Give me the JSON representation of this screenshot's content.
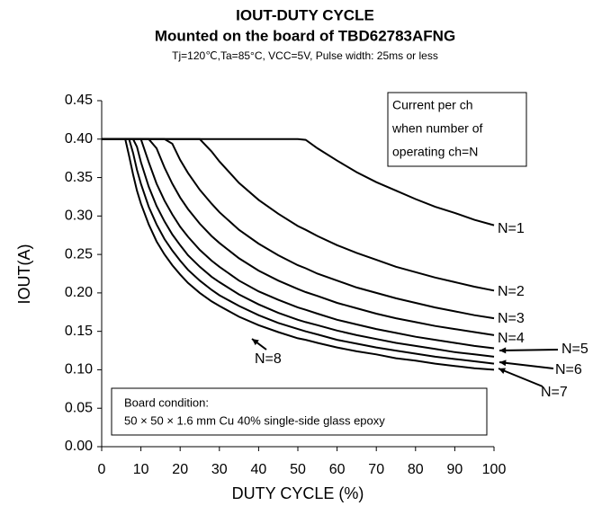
{
  "chart_data": {
    "type": "line",
    "title": "IOUT-DUTY CYCLE",
    "subtitle": "Mounted on the board of TBD62783AFNG",
    "conditions": "Tj=120℃,Ta=85°C, VCC=5V, Pulse width: 25ms or less",
    "x_label": "DUTY CYCLE (%)",
    "y_label": "IOUT(A)",
    "legend_note": [
      "Current per ch",
      "when number of",
      "operating ch=N"
    ],
    "board_note": [
      "Board condition:",
      "50 × 50 × 1.6 mm Cu 40% single-side glass epoxy"
    ],
    "xlim": [
      0,
      100
    ],
    "ylim": [
      0,
      0.45
    ],
    "xticks": [
      0,
      10,
      20,
      30,
      40,
      50,
      60,
      70,
      80,
      90,
      100
    ],
    "yticks": [
      {
        "value": 0,
        "label": "0.00"
      },
      {
        "value": 0.05,
        "label": "0.05"
      },
      {
        "value": 0.1,
        "label": "0.10"
      },
      {
        "value": 0.15,
        "label": "0.15"
      },
      {
        "value": 0.2,
        "label": "0.20"
      },
      {
        "value": 0.25,
        "label": "0.25"
      },
      {
        "value": 0.3,
        "label": "0.30"
      },
      {
        "value": 0.35,
        "label": "0.35"
      },
      {
        "value": 0.4,
        "label": "0.40"
      },
      {
        "value": 0.45,
        "label": "0.45"
      }
    ],
    "grid": false,
    "x": [
      0,
      5,
      6,
      7,
      8,
      9,
      10,
      12,
      14,
      16,
      18,
      20,
      22,
      25,
      28,
      30,
      35,
      40,
      45,
      50,
      52,
      55,
      60,
      65,
      70,
      75,
      80,
      85,
      90,
      95,
      100
    ],
    "series": [
      {
        "name": "N=1",
        "color": "#000000",
        "values": [
          0.4,
          0.4,
          0.4,
          0.4,
          0.4,
          0.4,
          0.4,
          0.4,
          0.4,
          0.4,
          0.4,
          0.4,
          0.4,
          0.4,
          0.4,
          0.4,
          0.4,
          0.4,
          0.4,
          0.4,
          0.399,
          0.388,
          0.372,
          0.357,
          0.344,
          0.333,
          0.322,
          0.312,
          0.304,
          0.295,
          0.288
        ]
      },
      {
        "name": "N=2",
        "color": "#000000",
        "values": [
          0.4,
          0.4,
          0.4,
          0.4,
          0.4,
          0.4,
          0.4,
          0.4,
          0.4,
          0.4,
          0.4,
          0.4,
          0.4,
          0.4,
          0.384,
          0.371,
          0.343,
          0.321,
          0.303,
          0.287,
          0.282,
          0.274,
          0.262,
          0.252,
          0.243,
          0.234,
          0.227,
          0.22,
          0.214,
          0.208,
          0.203
        ]
      },
      {
        "name": "N=3",
        "color": "#000000",
        "values": [
          0.4,
          0.4,
          0.4,
          0.4,
          0.4,
          0.4,
          0.4,
          0.4,
          0.4,
          0.4,
          0.394,
          0.373,
          0.356,
          0.334,
          0.316,
          0.305,
          0.282,
          0.264,
          0.249,
          0.236,
          0.232,
          0.225,
          0.216,
          0.207,
          0.2,
          0.193,
          0.187,
          0.181,
          0.176,
          0.171,
          0.167
        ]
      },
      {
        "name": "N=4",
        "color": "#000000",
        "values": [
          0.4,
          0.4,
          0.4,
          0.4,
          0.4,
          0.4,
          0.4,
          0.4,
          0.388,
          0.363,
          0.342,
          0.324,
          0.309,
          0.29,
          0.274,
          0.265,
          0.245,
          0.229,
          0.216,
          0.205,
          0.201,
          0.196,
          0.187,
          0.18,
          0.173,
          0.167,
          0.162,
          0.157,
          0.153,
          0.149,
          0.145
        ]
      },
      {
        "name": "N=5",
        "color": "#000000",
        "values": [
          0.4,
          0.4,
          0.4,
          0.4,
          0.4,
          0.4,
          0.4,
          0.37,
          0.342,
          0.32,
          0.302,
          0.286,
          0.273,
          0.256,
          0.242,
          0.234,
          0.216,
          0.202,
          0.191,
          0.181,
          0.178,
          0.173,
          0.165,
          0.159,
          0.153,
          0.148,
          0.143,
          0.139,
          0.135,
          0.131,
          0.128
        ]
      },
      {
        "name": "N=6",
        "color": "#000000",
        "values": [
          0.4,
          0.4,
          0.4,
          0.4,
          0.4,
          0.39,
          0.37,
          0.338,
          0.313,
          0.293,
          0.276,
          0.262,
          0.249,
          0.234,
          0.221,
          0.214,
          0.198,
          0.185,
          0.174,
          0.165,
          0.162,
          0.158,
          0.151,
          0.145,
          0.14,
          0.135,
          0.131,
          0.127,
          0.123,
          0.12,
          0.117
        ]
      },
      {
        "name": "N=7",
        "color": "#000000",
        "values": [
          0.4,
          0.4,
          0.4,
          0.4,
          0.382,
          0.36,
          0.342,
          0.312,
          0.289,
          0.27,
          0.255,
          0.242,
          0.23,
          0.216,
          0.204,
          0.197,
          0.183,
          0.171,
          0.161,
          0.153,
          0.15,
          0.146,
          0.139,
          0.134,
          0.129,
          0.125,
          0.121,
          0.117,
          0.114,
          0.111,
          0.108
        ]
      },
      {
        "name": "N=8",
        "color": "#000000",
        "values": [
          0.4,
          0.4,
          0.4,
          0.378,
          0.354,
          0.333,
          0.316,
          0.289,
          0.267,
          0.25,
          0.236,
          0.224,
          0.213,
          0.2,
          0.189,
          0.183,
          0.169,
          0.158,
          0.149,
          0.141,
          0.139,
          0.135,
          0.129,
          0.124,
          0.12,
          0.115,
          0.112,
          0.108,
          0.105,
          0.102,
          0.1
        ]
      }
    ]
  }
}
